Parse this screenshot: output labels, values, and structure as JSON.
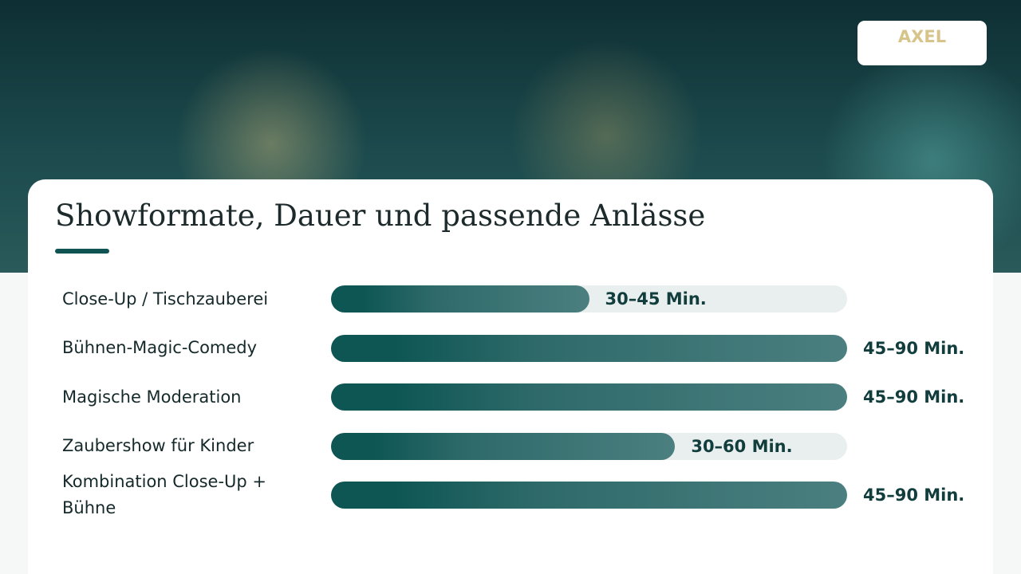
{
  "header": {
    "brand": "AXEL"
  },
  "chart_data": {
    "type": "bar",
    "orientation": "horizontal",
    "title": "Showformate, Dauer und passende Anlässe",
    "categories": [
      "Close-Up / Tischzauberei",
      "Bühnen-Magic-Comedy",
      "Magische Moderation",
      "Zaubershow für Kinder",
      "Kombination Close-Up + Bühne"
    ],
    "values": [
      45,
      90,
      90,
      60,
      90
    ],
    "value_labels": [
      "30–45 Min.",
      "45–90 Min.",
      "45–90 Min.",
      "30–60 Min.",
      "45–90 Min."
    ],
    "xlim": [
      0,
      90
    ],
    "color": "#0d5654"
  }
}
